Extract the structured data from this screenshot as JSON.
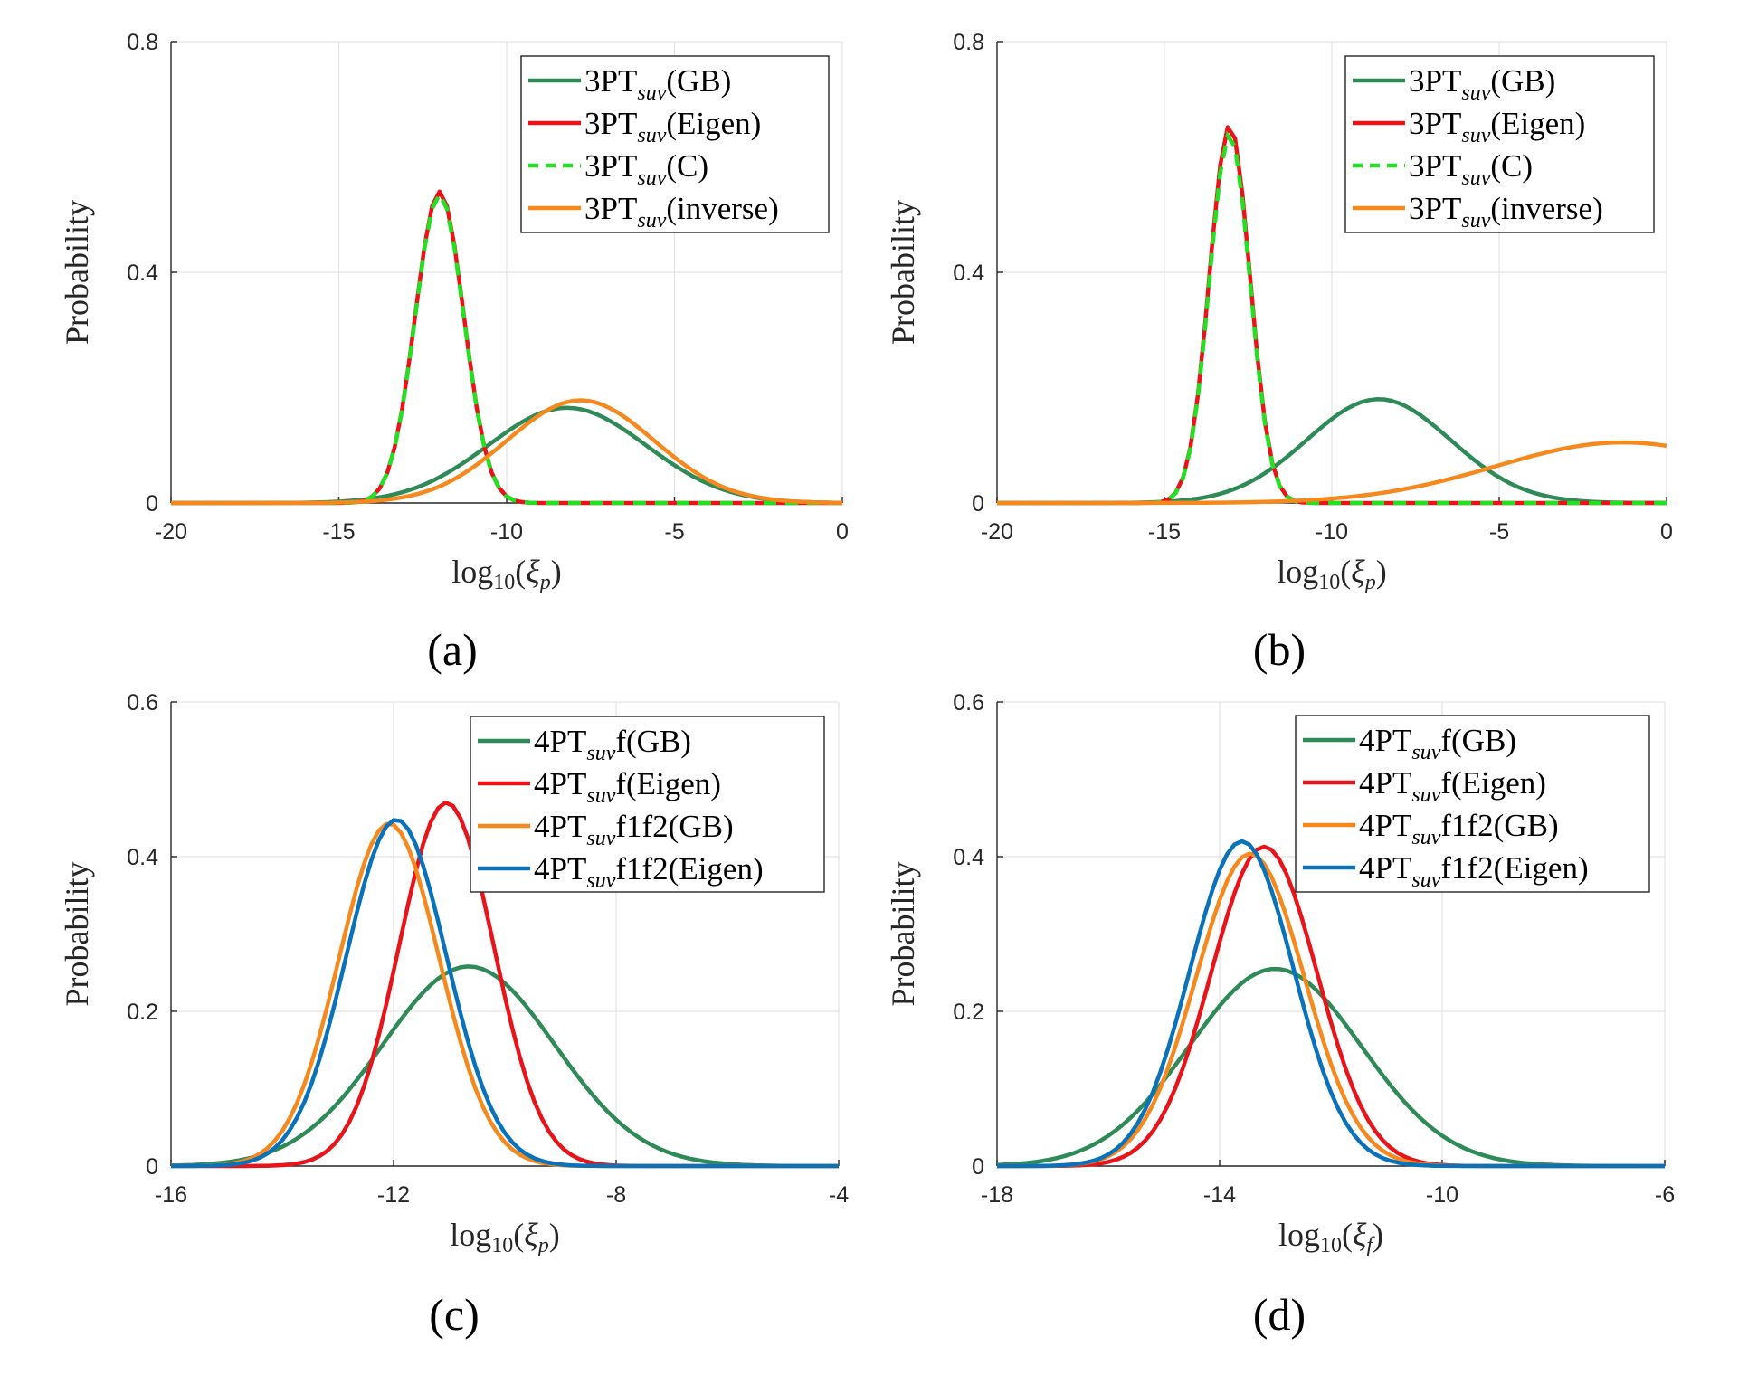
{
  "chart_data": [
    {
      "type": "line",
      "panel": "(a)",
      "xlabel": "log10(ξp)",
      "xlabel_parts": {
        "base": "log",
        "sub1": "10",
        "open": "(",
        "sym": "ξ",
        "sub2": "p",
        "close": ")"
      },
      "ylabel": "Probability",
      "xlim": [
        -20,
        0
      ],
      "ylim": [
        0,
        0.8
      ],
      "xticks": [
        -20,
        -15,
        -10,
        -5,
        0
      ],
      "xtick_labels": [
        "-20",
        "-15",
        "-10",
        "-5",
        "0"
      ],
      "yticks": [
        0,
        0.4,
        0.8
      ],
      "ytick_labels": [
        "0",
        "0.4",
        "0.8"
      ],
      "grid": true,
      "legend_position": "top-right",
      "series": [
        {
          "name": "3PTsuv(GB)",
          "label_main": "3PT",
          "label_sub": "suv",
          "label_tail": "(GB)",
          "color": "#2e8b57",
          "dash": false,
          "model": {
            "mu": -8.2,
            "sigma": 2.35,
            "peak": 0.165,
            "start": -20,
            "end": 0
          }
        },
        {
          "name": "3PTsuv(Eigen)",
          "label_main": "3PT",
          "label_sub": "suv",
          "label_tail": "(Eigen)",
          "color": "#e8141a",
          "dash": false,
          "model": {
            "mu": -12.0,
            "sigma": 0.72,
            "peak": 0.54,
            "start": -20,
            "end": 0
          }
        },
        {
          "name": "3PTsuv(C)",
          "label_main": "3PT",
          "label_sub": "suv",
          "label_tail": "(C)",
          "color": "#22e022",
          "dash": true,
          "model": {
            "mu": -12.0,
            "sigma": 0.72,
            "peak": 0.535,
            "start": -20,
            "end": 0
          }
        },
        {
          "name": "3PTsuv(inverse)",
          "label_main": "3PT",
          "label_sub": "suv",
          "label_tail": "(inverse)",
          "color": "#f5891e",
          "dash": false,
          "model": {
            "mu": -7.8,
            "sigma": 2.2,
            "peak": 0.178,
            "start": -20,
            "end": 0
          }
        }
      ]
    },
    {
      "type": "line",
      "panel": "(b)",
      "xlabel": "log10(ξp)",
      "xlabel_parts": {
        "base": "log",
        "sub1": "10",
        "open": "(",
        "sym": "ξ",
        "sub2": "p",
        "close": ")"
      },
      "ylabel": "Probability",
      "xlim": [
        -20,
        0
      ],
      "ylim": [
        0,
        0.8
      ],
      "xticks": [
        -20,
        -15,
        -10,
        -5,
        0
      ],
      "xtick_labels": [
        "-20",
        "-15",
        "-10",
        "-5",
        "0"
      ],
      "yticks": [
        0,
        0.4,
        0.8
      ],
      "ytick_labels": [
        "0",
        "0.4",
        "0.8"
      ],
      "grid": true,
      "legend_position": "top-right",
      "series": [
        {
          "name": "3PTsuv(GB)",
          "label_main": "3PT",
          "label_sub": "suv",
          "label_tail": "(GB)",
          "color": "#2e8b57",
          "dash": false,
          "model": {
            "mu": -8.6,
            "sigma": 2.15,
            "peak": 0.18,
            "start": -20,
            "end": 0
          }
        },
        {
          "name": "3PTsuv(Eigen)",
          "label_main": "3PT",
          "label_sub": "suv",
          "label_tail": "(Eigen)",
          "color": "#e8141a",
          "dash": false,
          "model": {
            "mu": -13.05,
            "sigma": 0.6,
            "peak": 0.655,
            "start": -20,
            "end": 0
          }
        },
        {
          "name": "3PTsuv(C)",
          "label_main": "3PT",
          "label_sub": "suv",
          "label_tail": "(C)",
          "color": "#22e022",
          "dash": true,
          "model": {
            "mu": -13.05,
            "sigma": 0.6,
            "peak": 0.64,
            "start": -20,
            "end": 0
          }
        },
        {
          "name": "3PTsuv(inverse)",
          "label_main": "3PT",
          "label_sub": "suv",
          "label_tail": "(inverse)",
          "color": "#f5891e",
          "dash": false,
          "model": {
            "mu": -1.3,
            "sigma": 3.8,
            "peak": 0.105,
            "start": -20,
            "end": 0
          }
        }
      ]
    },
    {
      "type": "line",
      "panel": "(c)",
      "xlabel": "log10(ξp)",
      "xlabel_parts": {
        "base": "log",
        "sub1": "10",
        "open": "(",
        "sym": "ξ",
        "sub2": "p",
        "close": ")"
      },
      "ylabel": "Probability",
      "xlim": [
        -16,
        -4
      ],
      "ylim": [
        0,
        0.6
      ],
      "xticks": [
        -16,
        -12,
        -8,
        -4
      ],
      "xtick_labels": [
        "-16",
        "-12",
        "-8",
        "-4"
      ],
      "yticks": [
        0,
        0.2,
        0.4,
        0.6
      ],
      "ytick_labels": [
        "0",
        "0.2",
        "0.4",
        "0.6"
      ],
      "grid": true,
      "legend_position": "top-right",
      "series": [
        {
          "name": "4PTsuvf(GB)",
          "label_main": "4PT",
          "label_sub": "suv",
          "label_tail": "f(GB)",
          "color": "#2e8b57",
          "dash": false,
          "model": {
            "mu": -10.65,
            "sigma": 1.55,
            "peak": 0.258,
            "start": -16,
            "end": -4
          }
        },
        {
          "name": "4PTsuvf(Eigen)",
          "label_main": "4PT",
          "label_sub": "suv",
          "label_tail": "f(Eigen)",
          "color": "#e8141a",
          "dash": false,
          "model": {
            "mu": -11.05,
            "sigma": 0.85,
            "peak": 0.47,
            "start": -16,
            "end": -4
          }
        },
        {
          "name": "4PTsuvf1f2(GB)",
          "label_main": "4PT",
          "label_sub": "suv",
          "label_tail": "f1f2(GB)",
          "color": "#f5891e",
          "dash": false,
          "model": {
            "mu": -12.08,
            "sigma": 0.9,
            "peak": 0.443,
            "start": -16,
            "end": -4
          }
        },
        {
          "name": "4PTsuvf1f2(Eigen)",
          "label_main": "4PT",
          "label_sub": "suv",
          "label_tail": "f1f2(Eigen)",
          "color": "#0a72ba",
          "dash": false,
          "model": {
            "mu": -11.95,
            "sigma": 0.9,
            "peak": 0.448,
            "start": -16,
            "end": -4
          }
        }
      ]
    },
    {
      "type": "line",
      "panel": "(d)",
      "xlabel": "log10(ξf)",
      "xlabel_parts": {
        "base": "log",
        "sub1": "10",
        "open": "(",
        "sym": "ξ",
        "sub2": "f",
        "close": ")"
      },
      "ylabel": "Probability",
      "xlim": [
        -18,
        -6
      ],
      "ylim": [
        0,
        0.6
      ],
      "xticks": [
        -18,
        -14,
        -10,
        -6
      ],
      "xtick_labels": [
        "-18",
        "-14",
        "-10",
        "-6"
      ],
      "yticks": [
        0,
        0.2,
        0.4,
        0.6
      ],
      "ytick_labels": [
        "0",
        "0.2",
        "0.4",
        "0.6"
      ],
      "grid": true,
      "legend_position": "top-right",
      "series": [
        {
          "name": "4PTsuvf(GB)",
          "label_main": "4PT",
          "label_sub": "suv",
          "label_tail": "f(GB)",
          "color": "#2e8b57",
          "dash": false,
          "model": {
            "mu": -13.0,
            "sigma": 1.55,
            "peak": 0.255,
            "start": -18,
            "end": -6
          }
        },
        {
          "name": "4PTsuvf(Eigen)",
          "label_main": "4PT",
          "label_sub": "suv",
          "label_tail": "f(Eigen)",
          "color": "#e8141a",
          "dash": false,
          "model": {
            "mu": -13.2,
            "sigma": 0.95,
            "peak": 0.413,
            "start": -18,
            "end": -6
          }
        },
        {
          "name": "4PTsuvf1f2(GB)",
          "label_main": "4PT",
          "label_sub": "suv",
          "label_tail": "f1f2(GB)",
          "color": "#f5891e",
          "dash": false,
          "model": {
            "mu": -13.45,
            "sigma": 0.97,
            "peak": 0.404,
            "start": -18,
            "end": -6
          }
        },
        {
          "name": "4PTsuvf1f2(Eigen)",
          "label_main": "4PT",
          "label_sub": "suv",
          "label_tail": "f1f2(Eigen)",
          "color": "#0a72ba",
          "dash": false,
          "model": {
            "mu": -13.6,
            "sigma": 0.93,
            "peak": 0.42,
            "start": -18,
            "end": -6
          }
        }
      ]
    }
  ]
}
